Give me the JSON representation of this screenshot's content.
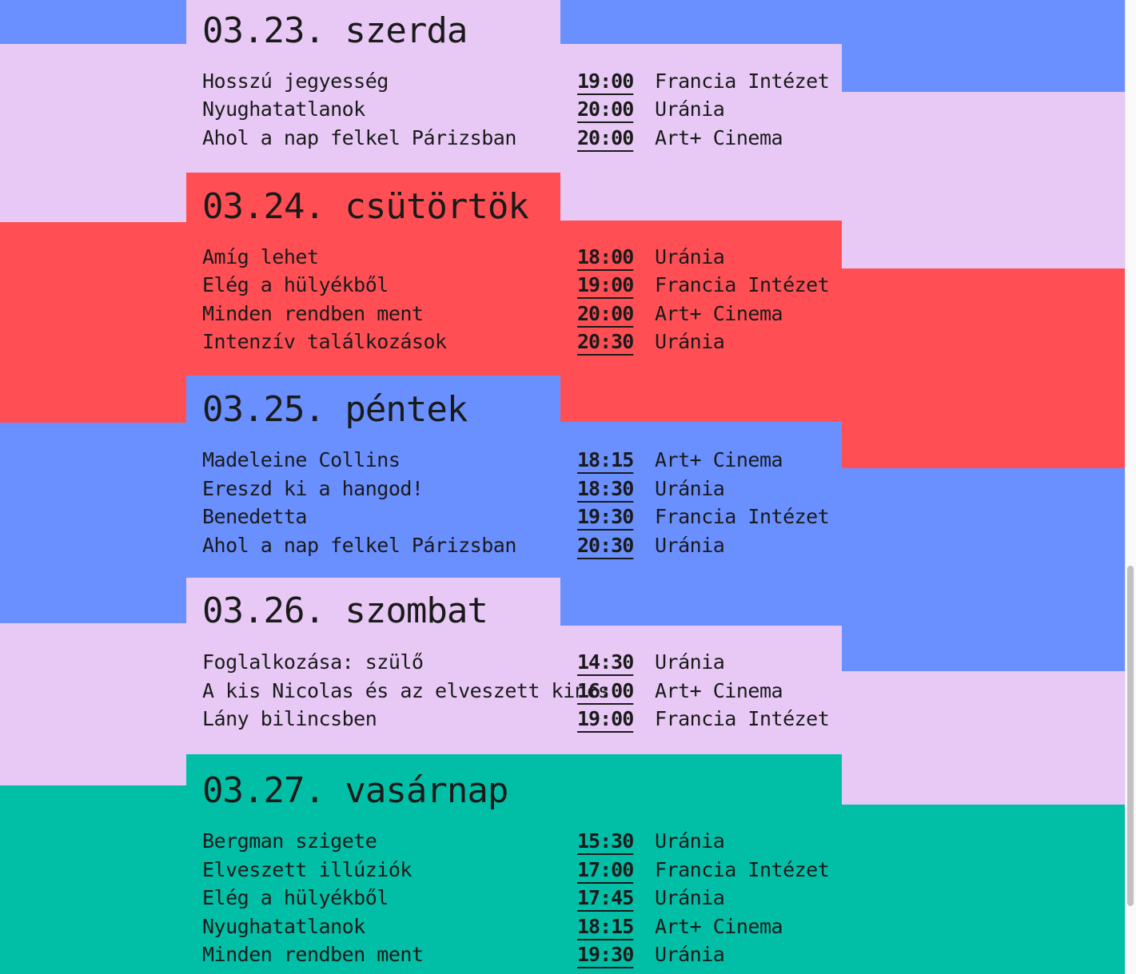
{
  "colors": {
    "lavender": "#e8c9f6",
    "red": "#ff4f55",
    "blue": "#6a8fff",
    "teal": "#00bfa6",
    "text": "#1a1a1a"
  },
  "days": [
    {
      "title": "03.23. szerda",
      "screenings": [
        {
          "film": "Hosszú jegyesség",
          "time": "19:00",
          "venue": "Francia Intézet"
        },
        {
          "film": "Nyughatatlanok",
          "time": "20:00",
          "venue": "Uránia"
        },
        {
          "film": "Ahol a nap felkel Párizsban",
          "time": "20:00",
          "venue": "Art+ Cinema"
        }
      ]
    },
    {
      "title": "03.24. csütörtök",
      "screenings": [
        {
          "film": "Amíg lehet",
          "time": "18:00",
          "venue": "Uránia"
        },
        {
          "film": "Elég a hülyékből",
          "time": "19:00",
          "venue": "Francia Intézet"
        },
        {
          "film": "Minden rendben ment",
          "time": "20:00",
          "venue": "Art+ Cinema"
        },
        {
          "film": "Intenzív találkozások",
          "time": "20:30",
          "venue": "Uránia"
        }
      ]
    },
    {
      "title": "03.25. péntek",
      "screenings": [
        {
          "film": "Madeleine Collins",
          "time": "18:15",
          "venue": "Art+ Cinema"
        },
        {
          "film": "Ereszd ki a hangod!",
          "time": "18:30",
          "venue": "Uránia"
        },
        {
          "film": "Benedetta",
          "time": "19:30",
          "venue": "Francia Intézet"
        },
        {
          "film": "Ahol a nap felkel Párizsban",
          "time": "20:30",
          "venue": "Uránia"
        }
      ]
    },
    {
      "title": "03.26. szombat",
      "screenings": [
        {
          "film": "Foglalkozása: szülő",
          "time": "14:30",
          "venue": "Uránia"
        },
        {
          "film": "A kis Nicolas és az elveszett kincs",
          "time": "16:00",
          "venue": "Art+ Cinema"
        },
        {
          "film": "Lány bilincsben",
          "time": "19:00",
          "venue": "Francia Intézet"
        }
      ]
    },
    {
      "title": "03.27. vasárnap",
      "screenings": [
        {
          "film": "Bergman szigete",
          "time": "15:30",
          "venue": "Uránia"
        },
        {
          "film": "Elveszett illúziók",
          "time": "17:00",
          "venue": "Francia Intézet"
        },
        {
          "film": "Elég a hülyékből",
          "time": "17:45",
          "venue": "Uránia"
        },
        {
          "film": "Nyughatatlanok",
          "time": "18:15",
          "venue": "Art+ Cinema"
        },
        {
          "film": "Minden rendben ment",
          "time": "19:30",
          "venue": "Uránia"
        }
      ]
    }
  ]
}
